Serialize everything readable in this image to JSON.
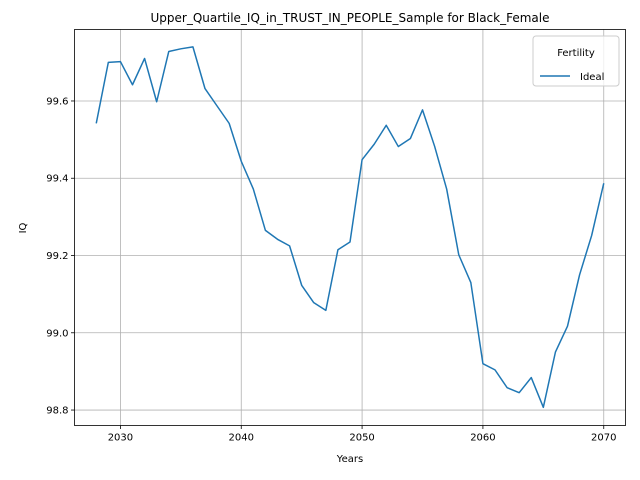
{
  "chart_data": {
    "type": "line",
    "title": "Upper_Quartile_IQ_in_TRUST_IN_PEOPLE_Sample for Black_Female",
    "xlabel": "Years",
    "ylabel": "IQ",
    "xlim": [
      2026.2,
      2071.8
    ],
    "ylim": [
      98.76,
      99.785
    ],
    "x_ticks": [
      2030,
      2040,
      2050,
      2060,
      2070
    ],
    "y_ticks": [
      98.8,
      99.0,
      99.2,
      99.4,
      99.6
    ],
    "x_tick_labels": [
      "2030",
      "2040",
      "2050",
      "2060",
      "2070"
    ],
    "y_tick_labels": [
      "98.8",
      "99.0",
      "99.2",
      "99.4",
      "99.6"
    ],
    "grid": true,
    "legend": {
      "title": "Fertility",
      "placement": "top-right"
    },
    "series": [
      {
        "name": "Ideal",
        "color": "#1f77b4",
        "x": [
          2028,
          2029,
          2030,
          2031,
          2032,
          2033,
          2034,
          2035,
          2036,
          2037,
          2038,
          2039,
          2040,
          2041,
          2042,
          2043,
          2044,
          2045,
          2046,
          2047,
          2048,
          2049,
          2050,
          2051,
          2052,
          2053,
          2054,
          2055,
          2056,
          2057,
          2058,
          2059,
          2060,
          2061,
          2062,
          2063,
          2064,
          2065,
          2066,
          2067,
          2068,
          2069,
          2070
        ],
        "values": [
          99.542,
          99.7,
          99.702,
          99.642,
          99.71,
          99.598,
          99.728,
          99.735,
          99.74,
          99.632,
          99.587,
          99.542,
          99.444,
          99.372,
          99.265,
          99.242,
          99.225,
          99.123,
          99.078,
          99.058,
          99.215,
          99.235,
          99.448,
          99.488,
          99.537,
          99.482,
          99.503,
          99.577,
          99.483,
          99.372,
          99.202,
          99.13,
          98.92,
          98.904,
          98.858,
          98.845,
          98.884,
          98.807,
          98.95,
          99.017,
          99.15,
          99.252,
          99.387
        ]
      }
    ]
  }
}
